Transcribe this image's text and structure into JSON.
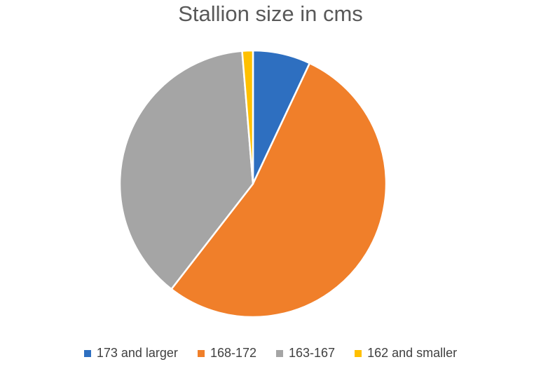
{
  "chart_data": {
    "type": "pie",
    "title": "Stallion size in cms",
    "legend_position": "bottom",
    "start_angle_deg": 0,
    "direction": "clockwise",
    "slices": [
      {
        "label": "173 and larger",
        "value": 7.0,
        "color": "#2E6FC0"
      },
      {
        "label": "168-172",
        "value": 53.5,
        "color": "#F07F2A"
      },
      {
        "label": "163-167",
        "value": 38.2,
        "color": "#A5A5A5"
      },
      {
        "label": "162 and smaller",
        "value": 1.3,
        "color": "#FFC000"
      }
    ]
  }
}
